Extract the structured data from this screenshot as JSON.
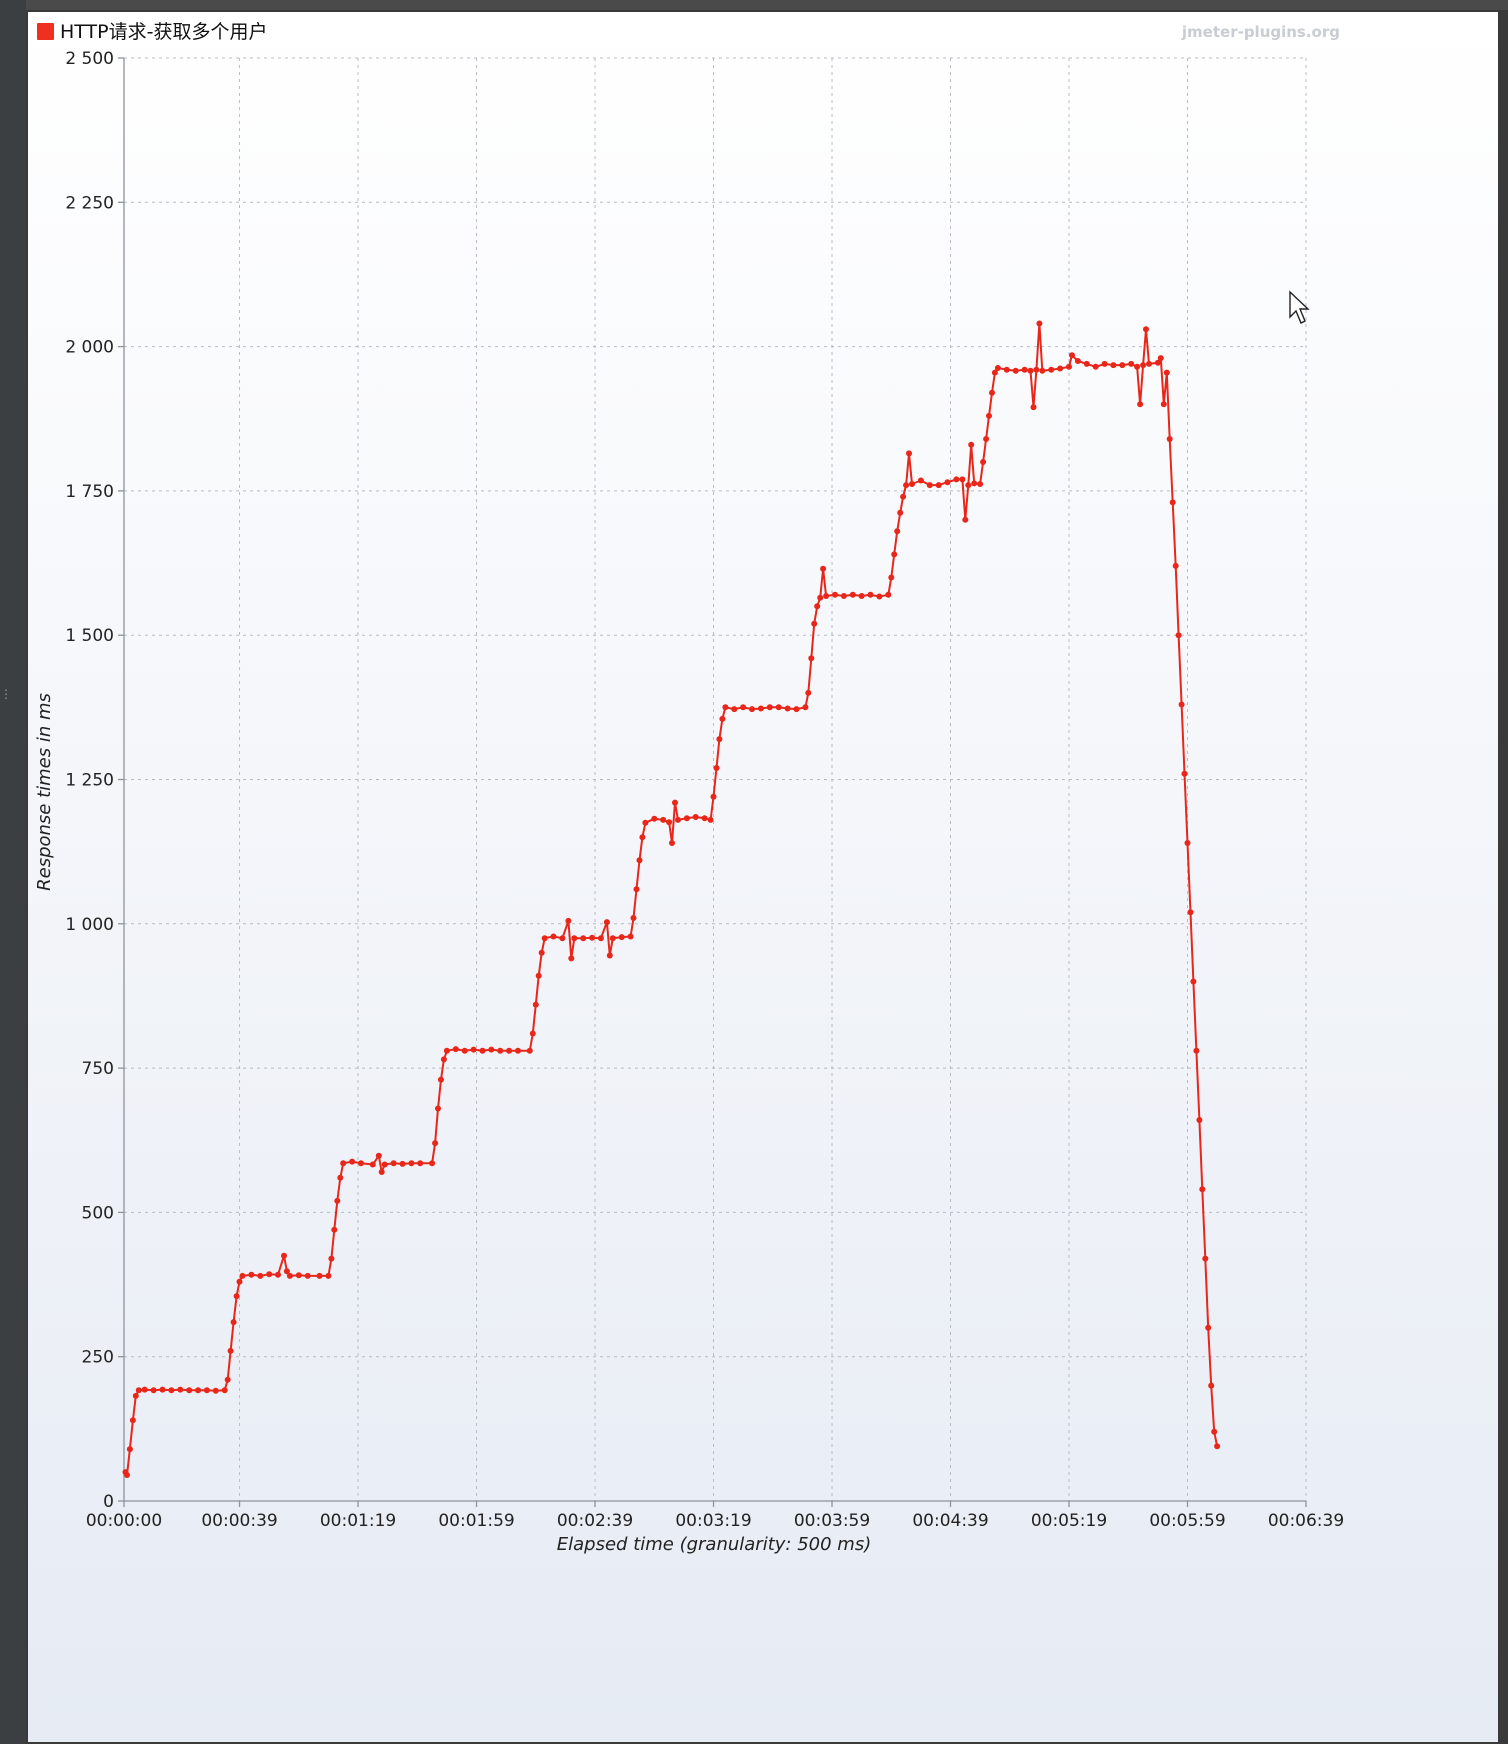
{
  "watermark": "jmeter-plugins.org",
  "colors": {
    "series": "#e8261a",
    "legend_swatch": "#f0301e"
  },
  "icons": {
    "cursor": "mouse-pointer-icon"
  },
  "chart_data": {
    "type": "line",
    "title": "",
    "xlabel": "Elapsed time (granularity: 500 ms)",
    "ylabel": "Response times in ms",
    "xlim": [
      0,
      399
    ],
    "ylim": [
      0,
      2500
    ],
    "x_unit": "seconds",
    "x_ticks": [
      {
        "value": 0,
        "label": "00:00:00"
      },
      {
        "value": 39,
        "label": "00:00:39"
      },
      {
        "value": 79,
        "label": "00:01:19"
      },
      {
        "value": 119,
        "label": "00:01:59"
      },
      {
        "value": 159,
        "label": "00:02:39"
      },
      {
        "value": 199,
        "label": "00:03:19"
      },
      {
        "value": 239,
        "label": "00:03:59"
      },
      {
        "value": 279,
        "label": "00:04:39"
      },
      {
        "value": 319,
        "label": "00:05:19"
      },
      {
        "value": 359,
        "label": "00:05:59"
      },
      {
        "value": 399,
        "label": "00:06:39"
      }
    ],
    "y_ticks": [
      {
        "value": 0,
        "label": "0"
      },
      {
        "value": 250,
        "label": "250"
      },
      {
        "value": 500,
        "label": "500"
      },
      {
        "value": 750,
        "label": "750"
      },
      {
        "value": 1000,
        "label": "1 000"
      },
      {
        "value": 1250,
        "label": "1 250"
      },
      {
        "value": 1500,
        "label": "1 500"
      },
      {
        "value": 1750,
        "label": "1 750"
      },
      {
        "value": 2000,
        "label": "2 000"
      },
      {
        "value": 2250,
        "label": "2 250"
      },
      {
        "value": 2500,
        "label": "2 500"
      }
    ],
    "grid": true,
    "legend_position": "top-left",
    "series": [
      {
        "name": "HTTP请求-获取多个用户",
        "points": [
          [
            0.5,
            50
          ],
          [
            1.0,
            45
          ],
          [
            2.0,
            90
          ],
          [
            3.0,
            140
          ],
          [
            4.0,
            182
          ],
          [
            5.0,
            192
          ],
          [
            7,
            193
          ],
          [
            10,
            192
          ],
          [
            13,
            193
          ],
          [
            16,
            192
          ],
          [
            19,
            193
          ],
          [
            22,
            192
          ],
          [
            25,
            192
          ],
          [
            28,
            192
          ],
          [
            31,
            191
          ],
          [
            34,
            192
          ],
          [
            35,
            210
          ],
          [
            36,
            260
          ],
          [
            37,
            310
          ],
          [
            38,
            355
          ],
          [
            39,
            380
          ],
          [
            40,
            390
          ],
          [
            43,
            392
          ],
          [
            46,
            390
          ],
          [
            49,
            393
          ],
          [
            52,
            392
          ],
          [
            54,
            425
          ],
          [
            55,
            398
          ],
          [
            56,
            390
          ],
          [
            59,
            391
          ],
          [
            62,
            390
          ],
          [
            66,
            390
          ],
          [
            69,
            390
          ],
          [
            70,
            420
          ],
          [
            71,
            470
          ],
          [
            72,
            520
          ],
          [
            73,
            560
          ],
          [
            74,
            585
          ],
          [
            77,
            588
          ],
          [
            80,
            585
          ],
          [
            84,
            583
          ],
          [
            86,
            598
          ],
          [
            87,
            570
          ],
          [
            88,
            583
          ],
          [
            91,
            585
          ],
          [
            94,
            584
          ],
          [
            97,
            585
          ],
          [
            100,
            585
          ],
          [
            104,
            585
          ],
          [
            105,
            620
          ],
          [
            106,
            680
          ],
          [
            107,
            730
          ],
          [
            108,
            765
          ],
          [
            109,
            780
          ],
          [
            112,
            783
          ],
          [
            115,
            780
          ],
          [
            118,
            782
          ],
          [
            121,
            780
          ],
          [
            124,
            782
          ],
          [
            127,
            780
          ],
          [
            130,
            780
          ],
          [
            133,
            780
          ],
          [
            137,
            780
          ],
          [
            138,
            810
          ],
          [
            139,
            860
          ],
          [
            140,
            910
          ],
          [
            141,
            950
          ],
          [
            142,
            975
          ],
          [
            145,
            978
          ],
          [
            148,
            975
          ],
          [
            150,
            1005
          ],
          [
            151,
            940
          ],
          [
            152,
            975
          ],
          [
            155,
            975
          ],
          [
            158,
            976
          ],
          [
            161,
            975
          ],
          [
            163,
            1003
          ],
          [
            164,
            945
          ],
          [
            165,
            975
          ],
          [
            168,
            977
          ],
          [
            171,
            978
          ],
          [
            172,
            1010
          ],
          [
            173,
            1060
          ],
          [
            174,
            1110
          ],
          [
            175,
            1150
          ],
          [
            176,
            1175
          ],
          [
            179,
            1182
          ],
          [
            182,
            1180
          ],
          [
            184,
            1176
          ],
          [
            185,
            1140
          ],
          [
            186,
            1210
          ],
          [
            187,
            1180
          ],
          [
            190,
            1183
          ],
          [
            193,
            1185
          ],
          [
            196,
            1183
          ],
          [
            198,
            1180
          ],
          [
            199,
            1220
          ],
          [
            200,
            1270
          ],
          [
            201,
            1320
          ],
          [
            202,
            1355
          ],
          [
            203,
            1375
          ],
          [
            206,
            1372
          ],
          [
            209,
            1375
          ],
          [
            212,
            1372
          ],
          [
            215,
            1373
          ],
          [
            218,
            1375
          ],
          [
            221,
            1375
          ],
          [
            224,
            1373
          ],
          [
            227,
            1372
          ],
          [
            230,
            1375
          ],
          [
            231,
            1400
          ],
          [
            232,
            1460
          ],
          [
            233,
            1520
          ],
          [
            234,
            1550
          ],
          [
            235,
            1565
          ],
          [
            236,
            1615
          ],
          [
            237,
            1568
          ],
          [
            240,
            1570
          ],
          [
            243,
            1568
          ],
          [
            246,
            1570
          ],
          [
            249,
            1568
          ],
          [
            252,
            1570
          ],
          [
            255,
            1567
          ],
          [
            258,
            1570
          ],
          [
            259,
            1600
          ],
          [
            260,
            1640
          ],
          [
            261,
            1680
          ],
          [
            262,
            1712
          ],
          [
            263,
            1740
          ],
          [
            264,
            1760
          ],
          [
            265,
            1815
          ],
          [
            266,
            1762
          ],
          [
            269,
            1768
          ],
          [
            272,
            1760
          ],
          [
            275,
            1760
          ],
          [
            278,
            1765
          ],
          [
            281,
            1770
          ],
          [
            283,
            1770
          ],
          [
            284,
            1700
          ],
          [
            285,
            1760
          ],
          [
            286,
            1830
          ],
          [
            287,
            1763
          ],
          [
            289,
            1762
          ],
          [
            290,
            1800
          ],
          [
            291,
            1840
          ],
          [
            292,
            1880
          ],
          [
            293,
            1920
          ],
          [
            294,
            1955
          ],
          [
            295,
            1963
          ],
          [
            298,
            1960
          ],
          [
            301,
            1958
          ],
          [
            304,
            1960
          ],
          [
            306,
            1958
          ],
          [
            307,
            1895
          ],
          [
            308,
            1960
          ],
          [
            309,
            2040
          ],
          [
            310,
            1958
          ],
          [
            313,
            1960
          ],
          [
            316,
            1962
          ],
          [
            319,
            1965
          ],
          [
            320,
            1985
          ],
          [
            322,
            1975
          ],
          [
            325,
            1970
          ],
          [
            328,
            1965
          ],
          [
            331,
            1970
          ],
          [
            334,
            1968
          ],
          [
            337,
            1968
          ],
          [
            340,
            1970
          ],
          [
            342,
            1965
          ],
          [
            343,
            1900
          ],
          [
            344,
            1968
          ],
          [
            345,
            2030
          ],
          [
            346,
            1970
          ],
          [
            349,
            1972
          ],
          [
            350,
            1980
          ],
          [
            351,
            1900
          ],
          [
            352,
            1955
          ],
          [
            353,
            1840
          ],
          [
            354,
            1730
          ],
          [
            355,
            1620
          ],
          [
            356,
            1500
          ],
          [
            357,
            1380
          ],
          [
            358,
            1260
          ],
          [
            359,
            1140
          ],
          [
            360,
            1020
          ],
          [
            361,
            900
          ],
          [
            362,
            780
          ],
          [
            363,
            660
          ],
          [
            364,
            540
          ],
          [
            365,
            420
          ],
          [
            366,
            300
          ],
          [
            367,
            200
          ],
          [
            368,
            120
          ],
          [
            369,
            95
          ]
        ]
      }
    ]
  }
}
